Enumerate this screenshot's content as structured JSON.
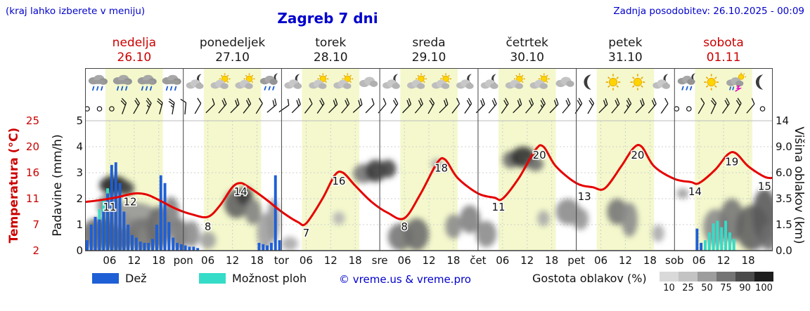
{
  "header": {
    "hint": "(kraj lahko izberete v meniju)",
    "title": "Zagreb 7 dni",
    "updated": "Zadnja posodobitev: 26.10.2025 - 00:09"
  },
  "days": [
    {
      "name": "nedelja",
      "date": "26.10",
      "color": "#cc0000",
      "icons": [
        "rain",
        "rain",
        "rain",
        "rain"
      ]
    },
    {
      "name": "ponedeljek",
      "date": "27.10",
      "color": "#1a1a1a",
      "icons": [
        "moon-cloud",
        "sun-cloud",
        "sun-cloud",
        "moon-rain"
      ]
    },
    {
      "name": "torek",
      "date": "28.10",
      "color": "#1a1a1a",
      "icons": [
        "moon-cloud",
        "sun-cloud",
        "sun-cloud",
        "cloud"
      ]
    },
    {
      "name": "sreda",
      "date": "29.10",
      "color": "#1a1a1a",
      "icons": [
        "moon-cloud",
        "sun-cloud",
        "sun-cloud",
        "moon-cloud"
      ]
    },
    {
      "name": "četrtek",
      "date": "30.10",
      "color": "#1a1a1a",
      "icons": [
        "moon-cloud",
        "sun-cloud",
        "sun-cloud",
        "cloud"
      ]
    },
    {
      "name": "petek",
      "date": "31.10",
      "color": "#1a1a1a",
      "icons": [
        "moon",
        "sun",
        "sun",
        "moon-cloud"
      ]
    },
    {
      "name": "sobota",
      "date": "01.11",
      "color": "#cc0000",
      "icons": [
        "moon-rain",
        "sun",
        "storm",
        "moon"
      ]
    }
  ],
  "axes": {
    "temp_label": "Temperatura (°C)",
    "temp_ticks": [
      "25",
      "20",
      "16",
      "11",
      "7",
      "2"
    ],
    "precip_label": "Padavine (mm/h)",
    "precip_ticks": [
      "5",
      "4",
      "3",
      "2",
      "1",
      "0"
    ],
    "cloud_label": "Višina oblakov (km)",
    "cloud_ticks": [
      "14",
      "9.0",
      "6.0",
      "3.5",
      "1.5",
      "0.0"
    ]
  },
  "legend": {
    "rain_label": "Dež",
    "shower_label": "Možnost ploh",
    "copyright": "© vreme.us & vreme.pro",
    "cloud_label": "Gostota oblakov (%)",
    "cloud_scale": [
      "10",
      "25",
      "50",
      "75",
      "90",
      "100"
    ]
  },
  "colors": {
    "text_blue": "#0000cc",
    "red": "#cc0000",
    "temp": "#e60000",
    "rain": "#1e5fd6",
    "shower": "#35dcc8",
    "band": "#f4f8cc",
    "grid": "#cfcfcf",
    "cloud_scale_colors": [
      "#d9d9d9",
      "#c3c3c3",
      "#9d9d9d",
      "#747474",
      "#4b4b4b",
      "#1e1e1e"
    ]
  },
  "chart_data": {
    "type": "meteogram (line + bar + area)",
    "x_unit": "hours from 26.10.2025 00:00, 7 days, range 0-168, day width 24h",
    "daylight_band_hours": [
      5,
      19
    ],
    "temperature": {
      "unit": "°C",
      "axis_ticks": [
        2,
        7,
        11,
        16,
        20,
        25
      ],
      "points": [
        [
          0,
          10.5
        ],
        [
          4,
          10.8
        ],
        [
          8,
          11.3
        ],
        [
          12,
          12
        ],
        [
          15,
          11.8
        ],
        [
          18,
          10.8
        ],
        [
          22,
          9.5
        ],
        [
          26,
          8.6
        ],
        [
          30,
          8.2
        ],
        [
          33,
          10
        ],
        [
          36,
          13.2
        ],
        [
          38,
          14
        ],
        [
          40,
          13.2
        ],
        [
          44,
          11
        ],
        [
          48,
          9
        ],
        [
          52,
          7.4
        ],
        [
          54,
          7.2
        ],
        [
          58,
          11
        ],
        [
          61,
          15.5
        ],
        [
          63,
          16
        ],
        [
          66,
          13.5
        ],
        [
          70,
          10.5
        ],
        [
          74,
          8.8
        ],
        [
          78,
          8
        ],
        [
          82,
          12
        ],
        [
          86,
          17.5
        ],
        [
          88,
          18
        ],
        [
          91,
          15
        ],
        [
          96,
          12
        ],
        [
          100,
          11.2
        ],
        [
          102,
          11
        ],
        [
          106,
          15
        ],
        [
          110,
          19.5
        ],
        [
          112,
          20
        ],
        [
          115,
          17
        ],
        [
          120,
          14
        ],
        [
          124,
          13.2
        ],
        [
          127,
          13
        ],
        [
          131,
          17
        ],
        [
          134,
          19.8
        ],
        [
          136,
          20
        ],
        [
          139,
          17
        ],
        [
          144,
          14.8
        ],
        [
          148,
          14.2
        ],
        [
          150,
          14
        ],
        [
          154,
          16.5
        ],
        [
          157,
          18.8
        ],
        [
          159,
          19
        ],
        [
          162,
          17
        ],
        [
          166,
          15.2
        ],
        [
          168,
          15
        ]
      ],
      "labels": [
        [
          6,
          11
        ],
        [
          11,
          12
        ],
        [
          30,
          8
        ],
        [
          38,
          14
        ],
        [
          54,
          7
        ],
        [
          62,
          16
        ],
        [
          78,
          8
        ],
        [
          87,
          18
        ],
        [
          101,
          11
        ],
        [
          111,
          20
        ],
        [
          122,
          13
        ],
        [
          135,
          20
        ],
        [
          149,
          14
        ],
        [
          158,
          19
        ],
        [
          166,
          15
        ]
      ]
    },
    "precip_axis_mmh": [
      0,
      5
    ],
    "precip_rain": [
      [
        0,
        0.4
      ],
      [
        1,
        1.0
      ],
      [
        2,
        1.3
      ],
      [
        3,
        1.2
      ],
      [
        4,
        1.5
      ],
      [
        5,
        2.2
      ],
      [
        6,
        3.3
      ],
      [
        7,
        3.4
      ],
      [
        8,
        2.6
      ],
      [
        9,
        1.5
      ],
      [
        10,
        1.0
      ],
      [
        11,
        0.6
      ],
      [
        12,
        0.5
      ],
      [
        13,
        0.35
      ],
      [
        14,
        0.3
      ],
      [
        15,
        0.3
      ],
      [
        16,
        0.45
      ],
      [
        17,
        1.0
      ],
      [
        18,
        2.9
      ],
      [
        19,
        2.6
      ],
      [
        20,
        1.1
      ],
      [
        21,
        0.5
      ],
      [
        22,
        0.3
      ],
      [
        23,
        0.25
      ],
      [
        24,
        0.2
      ],
      [
        25,
        0.15
      ],
      [
        26,
        0.15
      ],
      [
        27,
        0.1
      ],
      [
        42,
        0.3
      ],
      [
        43,
        0.25
      ],
      [
        44,
        0.2
      ],
      [
        45,
        0.3
      ],
      [
        46,
        2.9
      ],
      [
        47,
        0.4
      ],
      [
        149,
        0.85
      ],
      [
        150,
        0.3
      ]
    ],
    "precip_shower": [
      [
        3,
        1.6
      ],
      [
        4,
        2.0
      ],
      [
        5,
        2.4
      ],
      [
        151,
        0.4
      ],
      [
        152,
        0.7
      ],
      [
        153,
        1.05
      ],
      [
        154,
        1.15
      ],
      [
        155,
        0.9
      ],
      [
        156,
        1.15
      ],
      [
        157,
        0.7
      ],
      [
        158,
        0.45
      ]
    ],
    "cloud_axis_km": [
      0,
      1.5,
      3.5,
      6,
      9,
      14
    ],
    "clouds": [
      [
        3,
        1,
        4,
        1,
        60
      ],
      [
        8,
        1.2,
        5,
        1.2,
        70
      ],
      [
        6,
        3,
        3,
        1,
        50
      ],
      [
        7,
        4.8,
        3.5,
        0.9,
        95
      ],
      [
        10,
        4.5,
        2,
        0.7,
        80
      ],
      [
        12,
        2.2,
        6,
        1,
        40
      ],
      [
        14,
        1,
        4,
        1,
        55
      ],
      [
        18,
        1.5,
        3,
        1.4,
        60
      ],
      [
        21,
        2.5,
        2,
        1.2,
        50
      ],
      [
        23,
        1,
        2,
        1,
        55
      ],
      [
        26,
        1,
        2,
        0.8,
        45
      ],
      [
        30,
        0.6,
        2,
        0.5,
        35
      ],
      [
        37,
        3.2,
        3,
        1.2,
        65
      ],
      [
        39,
        3.8,
        2,
        0.8,
        85
      ],
      [
        41,
        2.5,
        2,
        1,
        50
      ],
      [
        44,
        1.2,
        2,
        1.2,
        35
      ],
      [
        46,
        2,
        1.5,
        1.5,
        40
      ],
      [
        50,
        0.4,
        2,
        0.4,
        30
      ],
      [
        62,
        2,
        1.5,
        0.5,
        25
      ],
      [
        68,
        6,
        2.5,
        1,
        55
      ],
      [
        71,
        6.3,
        2.5,
        1.2,
        85
      ],
      [
        74,
        6.5,
        2,
        1,
        80
      ],
      [
        77,
        0.8,
        3,
        0.8,
        55
      ],
      [
        81,
        1,
        3,
        1,
        60
      ],
      [
        86,
        7,
        1.5,
        0.6,
        30
      ],
      [
        90,
        1.5,
        2,
        0.8,
        45
      ],
      [
        94,
        2,
        2.5,
        1,
        50
      ],
      [
        98,
        1,
        2.5,
        0.8,
        45
      ],
      [
        104,
        7.5,
        2,
        1,
        60
      ],
      [
        107,
        7.8,
        3,
        1.2,
        90
      ],
      [
        110,
        7,
        2,
        0.8,
        60
      ],
      [
        112,
        2,
        1.5,
        0.6,
        30
      ],
      [
        118,
        2.5,
        3,
        1,
        45
      ],
      [
        121,
        2,
        2,
        0.8,
        40
      ],
      [
        130,
        2.5,
        2.5,
        1,
        55
      ],
      [
        133,
        2,
        2,
        1.2,
        45
      ],
      [
        140,
        1,
        1.5,
        0.5,
        30
      ],
      [
        146,
        4,
        1.5,
        0.5,
        35
      ],
      [
        154,
        1.5,
        3,
        1.2,
        45
      ],
      [
        158,
        2,
        3,
        1.5,
        55
      ],
      [
        163,
        1.5,
        4,
        1.5,
        65
      ],
      [
        166,
        2.5,
        3,
        2,
        70
      ],
      [
        167,
        0.8,
        2,
        0.8,
        60
      ]
    ],
    "wind_barbs": [
      [
        0,
        0,
        0
      ],
      [
        3,
        0,
        0
      ],
      [
        6,
        0,
        0
      ],
      [
        9,
        2,
        -70
      ],
      [
        12,
        2,
        -60
      ],
      [
        15,
        3,
        -65
      ],
      [
        18,
        2,
        -75
      ],
      [
        21,
        3,
        -80
      ],
      [
        24,
        1,
        -85
      ],
      [
        27,
        1,
        -60
      ],
      [
        30,
        1,
        -45
      ],
      [
        33,
        2,
        -50
      ],
      [
        36,
        2,
        -45
      ],
      [
        39,
        2,
        -52
      ],
      [
        42,
        1,
        -58
      ],
      [
        45,
        2,
        -40
      ],
      [
        48,
        1,
        -35
      ],
      [
        51,
        2,
        -45
      ],
      [
        54,
        1,
        -52
      ],
      [
        57,
        2,
        -55
      ],
      [
        60,
        2,
        -45
      ],
      [
        63,
        2,
        -50
      ],
      [
        66,
        2,
        -42
      ],
      [
        69,
        1,
        -46
      ],
      [
        72,
        1,
        -50
      ],
      [
        75,
        2,
        -55
      ],
      [
        78,
        2,
        -46
      ],
      [
        81,
        2,
        -50
      ],
      [
        84,
        2,
        -60
      ],
      [
        87,
        2,
        -45
      ],
      [
        90,
        1,
        -52
      ],
      [
        93,
        2,
        -55
      ],
      [
        96,
        2,
        -46
      ],
      [
        99,
        2,
        -50
      ],
      [
        102,
        2,
        -55
      ],
      [
        105,
        2,
        -45
      ],
      [
        108,
        2,
        -50
      ],
      [
        111,
        3,
        -55
      ],
      [
        114,
        2,
        -46
      ],
      [
        117,
        2,
        -50
      ],
      [
        120,
        2,
        -56
      ],
      [
        123,
        2,
        -60
      ],
      [
        126,
        2,
        -45
      ],
      [
        129,
        2,
        -50
      ],
      [
        132,
        3,
        -55
      ],
      [
        135,
        2,
        -46
      ],
      [
        138,
        2,
        -50
      ],
      [
        141,
        1,
        -55
      ],
      [
        144,
        0,
        0
      ],
      [
        147,
        0,
        0
      ],
      [
        150,
        1,
        -60
      ],
      [
        153,
        2,
        -65
      ],
      [
        156,
        2,
        -55
      ],
      [
        159,
        2,
        -60
      ],
      [
        162,
        1,
        -50
      ],
      [
        165,
        0,
        0
      ]
    ],
    "x_ticks": [
      [
        6,
        "06"
      ],
      [
        12,
        "12"
      ],
      [
        18,
        "18"
      ],
      [
        24,
        "pon"
      ],
      [
        30,
        "06"
      ],
      [
        36,
        "12"
      ],
      [
        42,
        "18"
      ],
      [
        48,
        "tor"
      ],
      [
        54,
        "06"
      ],
      [
        60,
        "12"
      ],
      [
        66,
        "18"
      ],
      [
        72,
        "sre"
      ],
      [
        78,
        "06"
      ],
      [
        84,
        "12"
      ],
      [
        90,
        "18"
      ],
      [
        96,
        "čet"
      ],
      [
        102,
        "06"
      ],
      [
        108,
        "12"
      ],
      [
        114,
        "18"
      ],
      [
        120,
        "pet"
      ],
      [
        126,
        "06"
      ],
      [
        132,
        "12"
      ],
      [
        138,
        "18"
      ],
      [
        144,
        "sob"
      ],
      [
        150,
        "06"
      ],
      [
        156,
        "12"
      ],
      [
        162,
        "18"
      ]
    ]
  }
}
